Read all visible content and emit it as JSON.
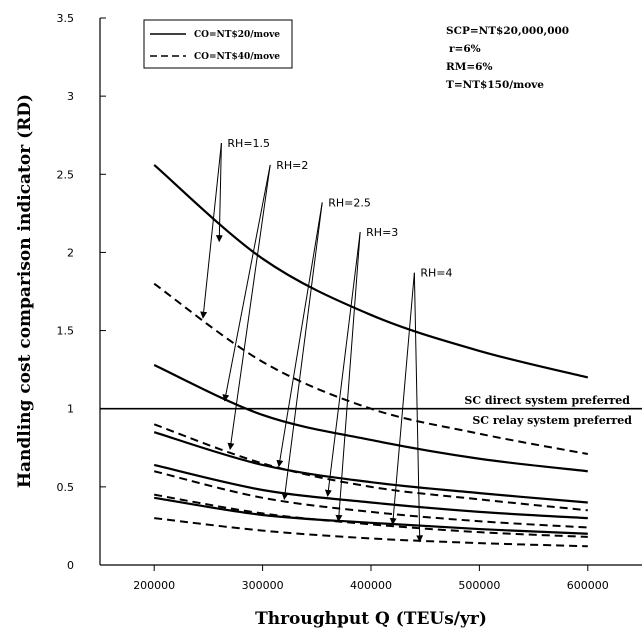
{
  "chart_data": {
    "type": "line",
    "title": "",
    "xlabel": "Throughput Q (TEUs/yr)",
    "ylabel": "Handling cost comparison indicator (RD)",
    "xlim": [
      150000,
      650000
    ],
    "ylim": [
      0,
      3.5
    ],
    "xticks": [
      200000,
      300000,
      400000,
      500000,
      600000
    ],
    "xtick_labels": [
      "200000",
      "300000",
      "400000",
      "500000",
      "600000"
    ],
    "yticks": [
      0,
      0.5,
      1,
      1.5,
      2,
      2.5,
      3,
      3.5
    ],
    "ytick_labels": [
      "0",
      "0.5",
      "1",
      "1.5",
      "2",
      "2.5",
      "3",
      "3.5"
    ],
    "grid": false,
    "legend": {
      "position": "top-left",
      "entries": [
        {
          "label": "CO=NT$20/move",
          "style": "solid"
        },
        {
          "label": "CO=NT$40/move",
          "style": "dashed"
        }
      ]
    },
    "parameters": [
      "SCP=NT$20,000,000",
      "r=6%",
      "RM=6%",
      "T=NT$150/move"
    ],
    "reference_line": {
      "y": 1,
      "label_above": "SC direct system preferred",
      "label_below": "SC relay system preferred"
    },
    "x": [
      200000,
      300000,
      400000,
      500000,
      600000
    ],
    "series": [
      {
        "co": "CO=NT$20/move",
        "rh": "RH=1.5",
        "style": "solid",
        "values": [
          2.56,
          1.96,
          1.6,
          1.37,
          1.2
        ]
      },
      {
        "co": "CO=NT$40/move",
        "rh": "RH=1.5",
        "style": "dashed",
        "values": [
          1.8,
          1.3,
          1.0,
          0.84,
          0.71
        ]
      },
      {
        "co": "CO=NT$20/move",
        "rh": "RH=2",
        "style": "solid",
        "values": [
          1.28,
          0.96,
          0.8,
          0.68,
          0.6
        ]
      },
      {
        "co": "CO=NT$40/move",
        "rh": "RH=2",
        "style": "dashed",
        "values": [
          0.9,
          0.65,
          0.5,
          0.42,
          0.35
        ]
      },
      {
        "co": "CO=NT$20/move",
        "rh": "RH=2.5",
        "style": "solid",
        "values": [
          0.85,
          0.64,
          0.53,
          0.46,
          0.4
        ]
      },
      {
        "co": "CO=NT$40/move",
        "rh": "RH=2.5",
        "style": "dashed",
        "values": [
          0.6,
          0.43,
          0.34,
          0.28,
          0.24
        ]
      },
      {
        "co": "CO=NT$20/move",
        "rh": "RH=3",
        "style": "solid",
        "values": [
          0.64,
          0.48,
          0.4,
          0.34,
          0.3
        ]
      },
      {
        "co": "CO=NT$40/move",
        "rh": "RH=3",
        "style": "dashed",
        "values": [
          0.45,
          0.33,
          0.26,
          0.21,
          0.18
        ]
      },
      {
        "co": "CO=NT$20/move",
        "rh": "RH=4",
        "style": "solid",
        "values": [
          0.43,
          0.32,
          0.27,
          0.23,
          0.2
        ]
      },
      {
        "co": "CO=NT$40/move",
        "rh": "RH=4",
        "style": "dashed",
        "values": [
          0.3,
          0.22,
          0.17,
          0.14,
          0.12
        ]
      }
    ],
    "annotations": [
      {
        "label": "RH=1.5",
        "points_to": [
          [
            260000,
            2.07
          ],
          [
            245000,
            1.58
          ]
        ],
        "text_at": [
          262000,
          2.7
        ]
      },
      {
        "label": "RH=2",
        "points_to": [
          [
            265000,
            1.05
          ],
          [
            270000,
            0.74
          ]
        ],
        "text_at": [
          307000,
          2.56
        ]
      },
      {
        "label": "RH=2.5",
        "points_to": [
          [
            315000,
            0.63
          ],
          [
            320000,
            0.42
          ]
        ],
        "text_at": [
          355000,
          2.32
        ]
      },
      {
        "label": "RH=3",
        "points_to": [
          [
            360000,
            0.44
          ],
          [
            370000,
            0.28
          ]
        ],
        "text_at": [
          390000,
          2.13
        ]
      },
      {
        "label": "RH=4",
        "points_to": [
          [
            420000,
            0.26
          ],
          [
            445000,
            0.15
          ]
        ],
        "text_at": [
          440000,
          1.87
        ]
      }
    ]
  }
}
